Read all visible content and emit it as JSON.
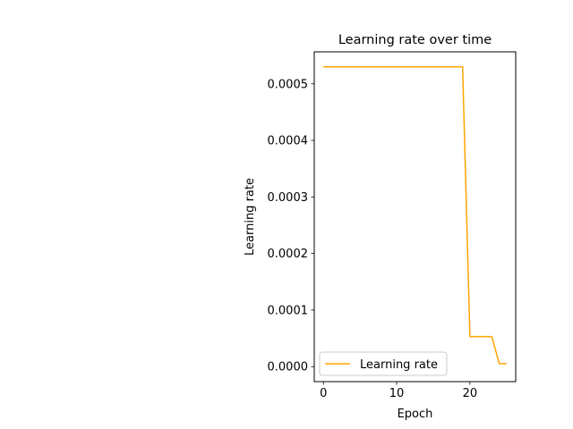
{
  "chart_data": {
    "type": "line",
    "title": "Learning rate over time",
    "xlabel": "Epoch",
    "ylabel": "Learning rate",
    "xlim": [
      -1.25,
      26.25
    ],
    "ylim": [
      -2.65e-05,
      0.0005565
    ],
    "x_ticks": [
      0,
      10,
      20
    ],
    "x_tick_labels": [
      "0",
      "10",
      "20"
    ],
    "y_ticks": [
      0.0,
      0.0001,
      0.0002,
      0.0003,
      0.0004,
      0.0005
    ],
    "y_tick_labels": [
      "0.0000",
      "0.0001",
      "0.0002",
      "0.0003",
      "0.0004",
      "0.0005"
    ],
    "grid": false,
    "legend_position": "lower-left",
    "series": [
      {
        "name": "Learning rate",
        "color": "#ffa500",
        "x": [
          0,
          1,
          2,
          3,
          4,
          5,
          6,
          7,
          8,
          9,
          10,
          11,
          12,
          13,
          14,
          15,
          16,
          17,
          18,
          19,
          20,
          21,
          22,
          23,
          24,
          25
        ],
        "y": [
          0.00053,
          0.00053,
          0.00053,
          0.00053,
          0.00053,
          0.00053,
          0.00053,
          0.00053,
          0.00053,
          0.00053,
          0.00053,
          0.00053,
          0.00053,
          0.00053,
          0.00053,
          0.00053,
          0.00053,
          0.00053,
          0.00053,
          0.00053,
          5.3e-05,
          5.3e-05,
          5.3e-05,
          5.3e-05,
          5.3e-06,
          5.3e-06
        ]
      }
    ]
  }
}
